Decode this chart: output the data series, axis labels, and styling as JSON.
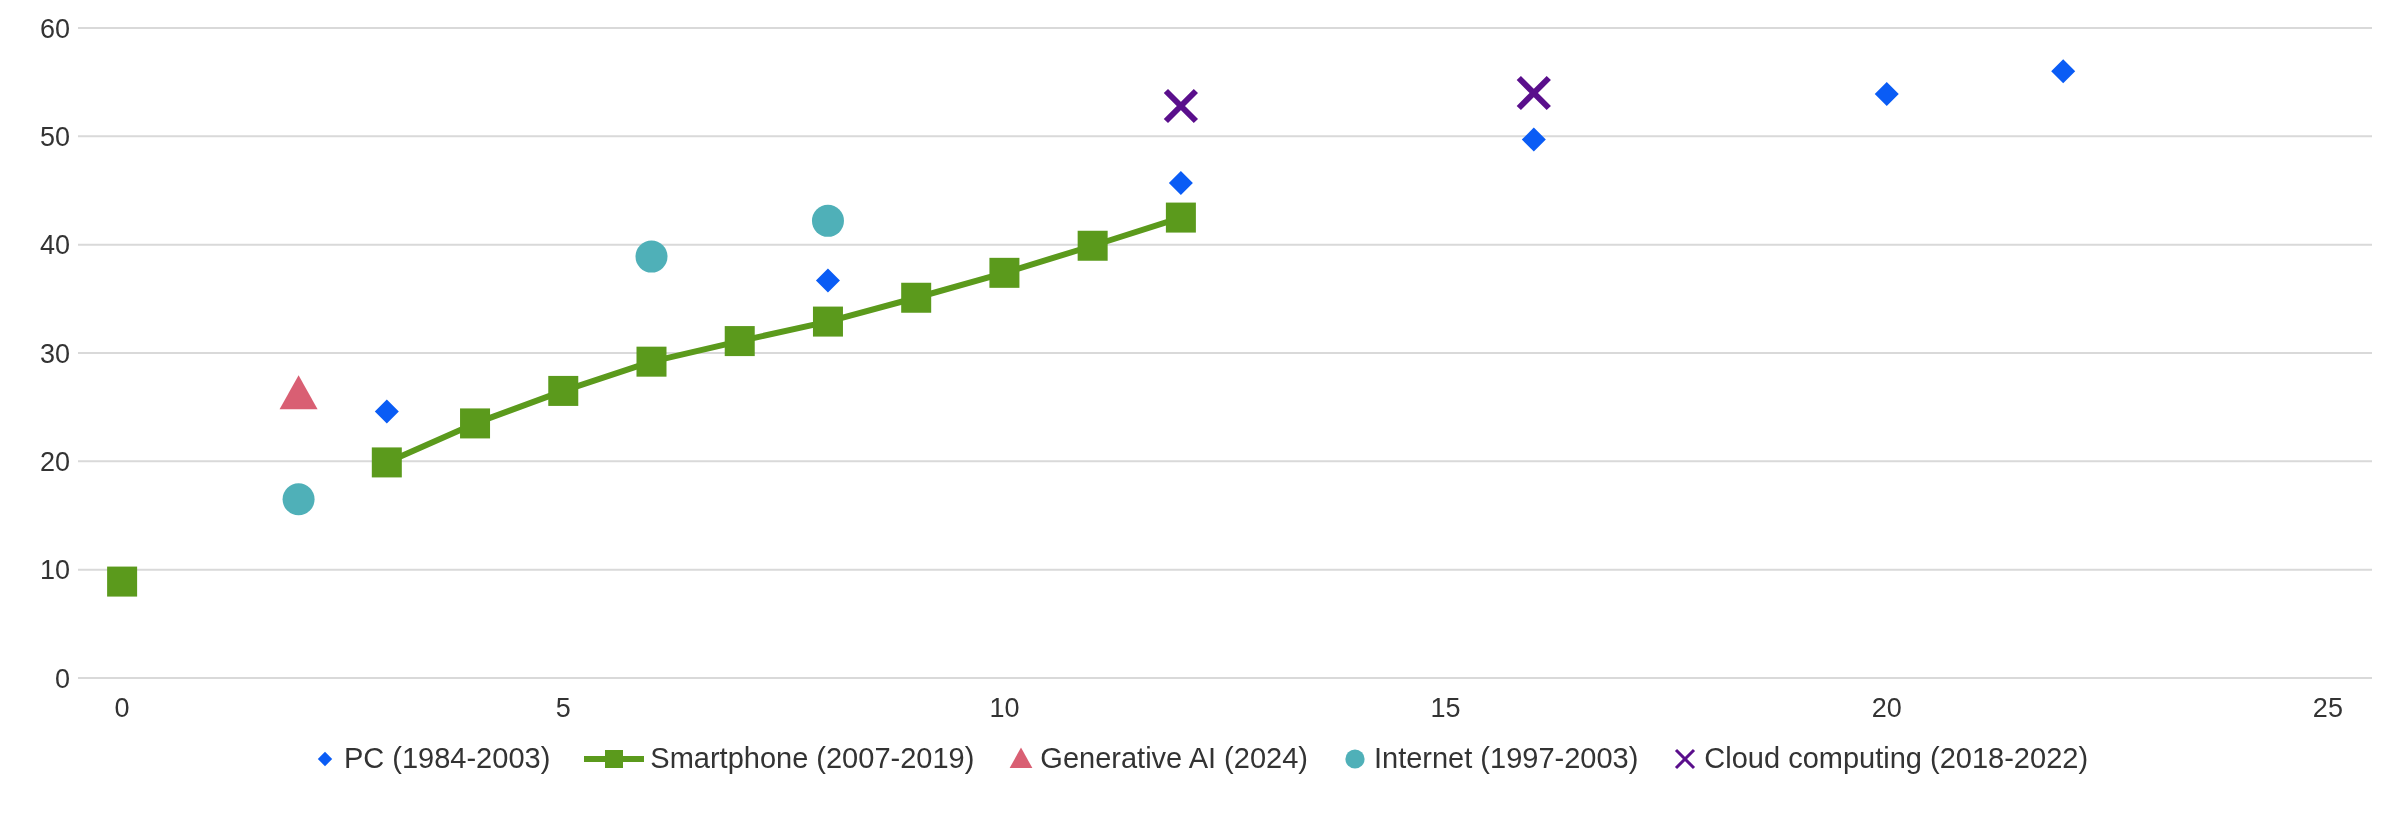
{
  "chart_data": {
    "type": "scatter",
    "xlim": [
      -0.5,
      25.5
    ],
    "xticks": [
      0,
      5,
      10,
      15,
      20,
      25
    ],
    "ylim": [
      0,
      60
    ],
    "yticks": [
      0,
      10,
      20,
      30,
      40,
      50,
      60
    ],
    "grid": "y",
    "legend": "bottom",
    "series": [
      {
        "name": "PC (1984-2003)",
        "type": "scatter",
        "marker": "diamond",
        "color": "#0a5cf5",
        "x": [
          3,
          8,
          12,
          16,
          20,
          22
        ],
        "values": [
          24.6,
          36.7,
          45.7,
          49.7,
          53.9,
          56.0
        ]
      },
      {
        "name": "Smartphone (2007-2019)",
        "type": "line",
        "marker": "square",
        "color": "#5b9a1c",
        "x": [
          0,
          1,
          2,
          3,
          4,
          5,
          6,
          7,
          8,
          9,
          10,
          11,
          12
        ],
        "values": [
          8.9,
          null,
          null,
          19.9,
          23.5,
          26.5,
          29.2,
          31.1,
          32.9,
          35.1,
          37.4,
          39.9,
          42.5
        ]
      },
      {
        "name": "Generative AI (2024)",
        "type": "scatter",
        "marker": "triangle",
        "color": "#d95f73",
        "x": [
          2
        ],
        "values": [
          26.2
        ]
      },
      {
        "name": "Internet (1997-2003)",
        "type": "scatter",
        "marker": "circle",
        "color": "#4fb0b8",
        "x": [
          2,
          6,
          8
        ],
        "values": [
          16.5,
          38.9,
          42.2
        ]
      },
      {
        "name": "Cloud computing (2018-2022)",
        "type": "scatter",
        "marker": "cross",
        "color": "#5a0f8c",
        "x": [
          12,
          16
        ],
        "values": [
          52.8,
          54.0
        ]
      }
    ]
  }
}
